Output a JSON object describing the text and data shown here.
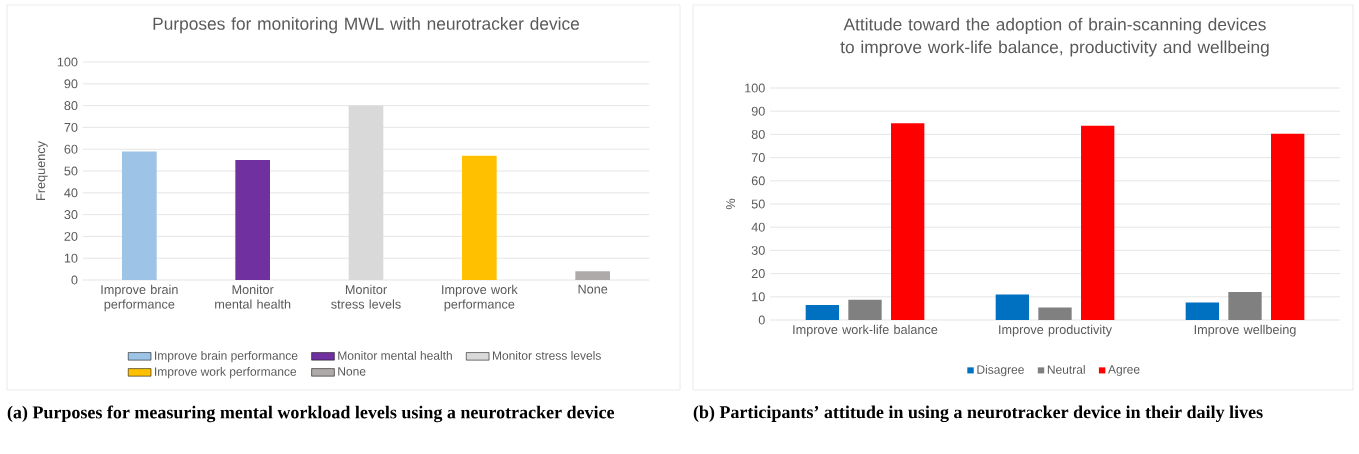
{
  "chart_data": [
    {
      "type": "bar",
      "title": "Purposes for monitoring MWL with neurotracker device",
      "ylabel": "Frequency",
      "categories": [
        "Improve brain performance",
        "Monitor mental health",
        "Monitor stress levels",
        "Improve work performance",
        "None"
      ],
      "stacked": true,
      "series": [
        {
          "name": "Improve brain performance",
          "color": "#9dc3e6",
          "values": [
            59,
            null,
            null,
            null,
            null
          ]
        },
        {
          "name": "Monitor mental health",
          "color": "#7030a0",
          "values": [
            null,
            55,
            null,
            null,
            null
          ]
        },
        {
          "name": "Monitor stress levels",
          "color": "#d9d9d9",
          "values": [
            null,
            null,
            80,
            null,
            null
          ]
        },
        {
          "name": "Improve work performance",
          "color": "#ffc000",
          "values": [
            null,
            null,
            null,
            57,
            null
          ]
        },
        {
          "name": "None",
          "color": "#aeaaaa",
          "values": [
            null,
            null,
            null,
            null,
            4
          ]
        }
      ],
      "ylim": [
        0,
        100
      ],
      "yticks": [
        0,
        10,
        20,
        30,
        40,
        50,
        60,
        70,
        80,
        90,
        100
      ],
      "grid": "y",
      "legend": "bottom",
      "annotations": [
        "(a) Purposes for measuring mental workload levels using a neurotracker device"
      ]
    },
    {
      "type": "bar",
      "title": "Attitude toward the adoption of brain-scanning devices to improve work-life balance, productivity and wellbeing",
      "ylabel": "%",
      "categories": [
        "Improve work-life balance",
        "Improve productivity",
        "Improve wellbeing"
      ],
      "series": [
        {
          "name": "Disagree",
          "color": "#0070c0",
          "values": [
            6.5,
            11,
            7.5
          ]
        },
        {
          "name": "Neutral",
          "color": "#808080",
          "values": [
            8.7,
            5.4,
            12.1
          ]
        },
        {
          "name": "Agree",
          "color": "#ff0000",
          "values": [
            84.8,
            83.7,
            80.3
          ]
        }
      ],
      "ylim": [
        0,
        100
      ],
      "yticks": [
        0,
        10,
        20,
        30,
        40,
        50,
        60,
        70,
        80,
        90,
        100
      ],
      "grid": "y",
      "legend": "bottom",
      "annotations": [
        "(b) Participants’ attitude in using a neurotracker device in their daily lives"
      ]
    }
  ]
}
